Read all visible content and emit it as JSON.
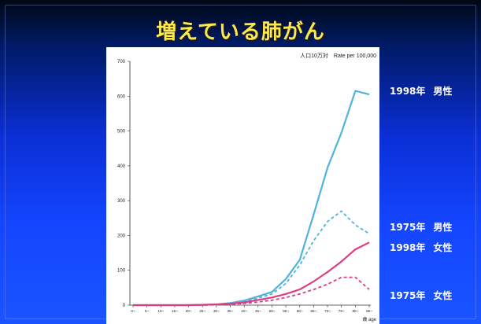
{
  "slide": {
    "title": "増えている肺がん"
  },
  "labels": {
    "male_1998": {
      "year": "1998年",
      "sex": "男性"
    },
    "male_1975": {
      "year": "1975年",
      "sex": "男性"
    },
    "female_1998": {
      "year": "1998年",
      "sex": "女性"
    },
    "female_1975": {
      "year": "1975年",
      "sex": "女性"
    }
  },
  "colors": {
    "male": "#4fb3dd",
    "female": "#dd3c83",
    "background_top": "#000814",
    "background_bottom": "#1a54ff",
    "title": "#ffe94a"
  },
  "chart_data": {
    "type": "line",
    "title": "",
    "unit_label": "人口10万対　Rate per 100,000",
    "xlabel": "歳 age",
    "ylabel": "",
    "ylim": [
      0,
      700
    ],
    "yticks": [
      "0",
      "100",
      "200",
      "300",
      "400",
      "500",
      "600",
      "700"
    ],
    "categories": [
      "0~",
      "5~",
      "10~",
      "15~",
      "20~",
      "25~",
      "30~",
      "35~",
      "40~",
      "45~",
      "50~",
      "55~",
      "60~",
      "65~",
      "70~",
      "75~",
      "80~",
      "85~"
    ],
    "grid": false,
    "series": [
      {
        "name": "1998年 男性",
        "style": "solid",
        "color": "#4fb3dd",
        "values": [
          0,
          0,
          0,
          0,
          0,
          1,
          2,
          6,
          13,
          25,
          38,
          75,
          130,
          260,
          395,
          495,
          615,
          605
        ]
      },
      {
        "name": "1975年 男性",
        "style": "dashed",
        "color": "#4fb3dd",
        "values": [
          0,
          0,
          0,
          0,
          0,
          1,
          2,
          5,
          11,
          20,
          32,
          62,
          115,
          185,
          240,
          270,
          230,
          205
        ]
      },
      {
        "name": "1998年 女性",
        "style": "solid",
        "color": "#dd3c83",
        "values": [
          0,
          0,
          0,
          0,
          0,
          1,
          2,
          4,
          8,
          15,
          22,
          32,
          45,
          68,
          95,
          125,
          160,
          180
        ]
      },
      {
        "name": "1975年 女性",
        "style": "dashed",
        "color": "#dd3c83",
        "values": [
          0,
          0,
          0,
          0,
          0,
          0,
          1,
          2,
          5,
          9,
          14,
          22,
          32,
          45,
          60,
          80,
          80,
          45
        ]
      }
    ]
  }
}
